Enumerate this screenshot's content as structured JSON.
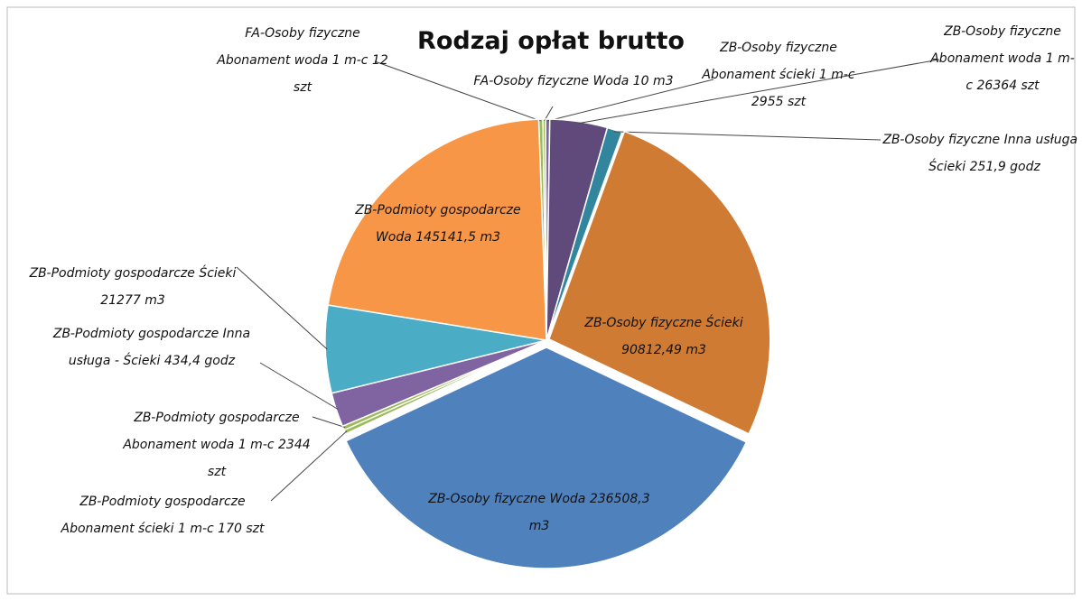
{
  "chart_data": {
    "type": "pie",
    "title": "Rodzaj opłat brutto",
    "categories": [
      "FA-Osoby fizyczne Abonament woda 1 m-c 12 szt",
      "FA-Osoby fizyczne Woda 10 m3",
      "ZB-Osoby fizyczne Abonament ścieki 1 m-c 2955 szt",
      "ZB-Osoby fizyczne Abonament woda 1 m-c 26364 szt",
      "ZB-Osoby fizyczne Inna usługa - Ścieki 251,9 godz",
      "ZB-Osoby fizyczne Ścieki 90812,49 m3",
      "ZB-Osoby fizyczne Woda 236508,3 m3",
      "ZB-Podmioty gospodarcze Abonament ścieki 1 m-c 170 szt",
      "ZB-Podmioty gospodarcze Abonament woda 1 m-c 2344 szt",
      "ZB-Podmioty gospodarcze Inna usługa - Ścieki 434,4 godz",
      "ZB-Podmioty gospodarcze Ścieki 21277 m3",
      "ZB-Podmioty gospodarcze Woda 145141,5 m3"
    ],
    "values": [
      0.3,
      0.2,
      0.3,
      4.2,
      1.1,
      26.5,
      36,
      0.3,
      0.3,
      2.5,
      6.4,
      21.9
    ],
    "colors": [
      "#9bbb59",
      "#9bbb59",
      "#8064a2",
      "#604a7b",
      "#31859c",
      "#d07b33",
      "#4f81bd",
      "#9bbb59",
      "#9bbb59",
      "#8064a2",
      "#4bacc6",
      "#f79646"
    ]
  }
}
